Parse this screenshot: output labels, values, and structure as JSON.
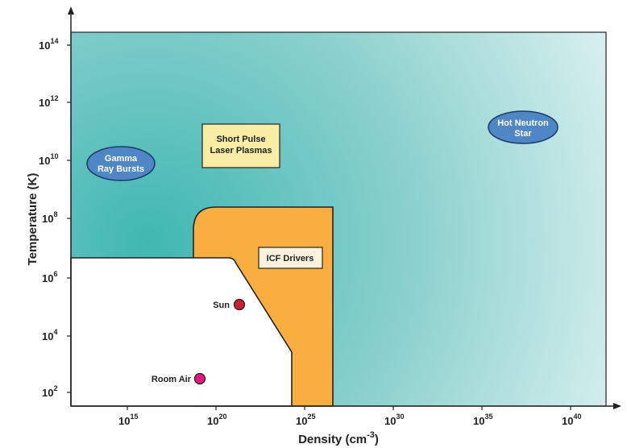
{
  "axes": {
    "x_title": "Density (cm",
    "x_title_exp": "-3",
    "x_title_close": ")",
    "y_title": "Temperature (K)",
    "x_ticks": [
      {
        "base": "10",
        "exp": "15"
      },
      {
        "base": "10",
        "exp": "20"
      },
      {
        "base": "10",
        "exp": "25"
      },
      {
        "base": "10",
        "exp": "30"
      },
      {
        "base": "10",
        "exp": "35"
      },
      {
        "base": "10",
        "exp": "40"
      }
    ],
    "y_ticks": [
      {
        "base": "10",
        "exp": "2"
      },
      {
        "base": "10",
        "exp": "4"
      },
      {
        "base": "10",
        "exp": "6"
      },
      {
        "base": "10",
        "exp": "8"
      },
      {
        "base": "10",
        "exp": "10"
      },
      {
        "base": "10",
        "exp": "12"
      },
      {
        "base": "10",
        "exp": "14"
      }
    ]
  },
  "regions": {
    "icf_label": "ICF Drivers",
    "short_pulse_line1": "Short Pulse",
    "short_pulse_line2": "Laser Plasmas",
    "gamma_line1": "Gamma",
    "gamma_line2": "Ray Bursts",
    "neutron_line1": "Hot Neutron",
    "neutron_line2": "Star"
  },
  "points": {
    "sun": "Sun",
    "room_air": "Room Air"
  },
  "colors": {
    "bg_teal": "#3fb7b2",
    "bg_light": "#eef8f8",
    "icf_orange": "#f9ae3f",
    "label_yellow": "#f9eda6",
    "oval_blue": "#4f86c6",
    "sun_red": "#c8202f",
    "room_air_magenta": "#e3177f"
  }
}
